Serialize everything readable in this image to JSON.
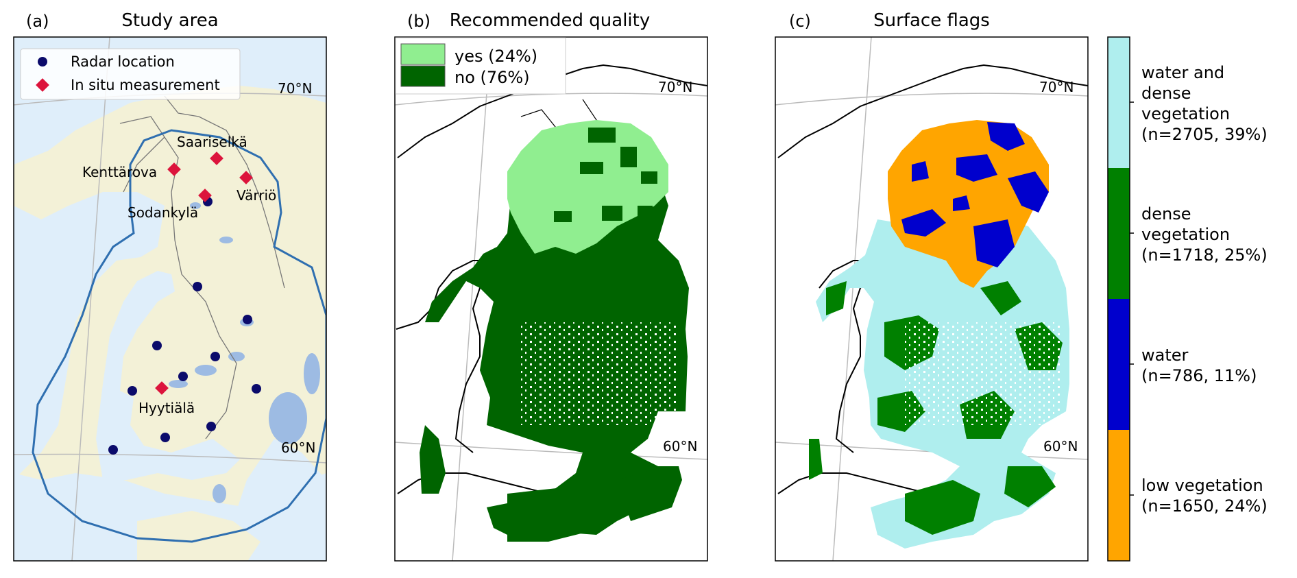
{
  "panels": [
    {
      "letter": "(a)",
      "title": "Study area"
    },
    {
      "letter": "(b)",
      "title": "Recommended quality"
    },
    {
      "letter": "(c)",
      "title": "Surface flags"
    }
  ],
  "panel_a": {
    "legend": {
      "radar": "Radar location",
      "insitu": "In situ measurement"
    },
    "lat70": "70°N",
    "lat60": "60°N",
    "sites": [
      {
        "name": "Saariselkä"
      },
      {
        "name": "Kenttärova"
      },
      {
        "name": "Värriö"
      },
      {
        "name": "Sodankylä"
      },
      {
        "name": "Hyytiälä"
      }
    ],
    "colors": {
      "radar": "#0b0b6b",
      "insitu": "#dc143c",
      "boundary": "#2f6fb0",
      "land": "#f3f1d7",
      "sea": "#dfeefa",
      "lake": "#9dbbe3"
    }
  },
  "panel_b": {
    "legend": {
      "yes": "yes (24%)",
      "no": "no (76%)"
    },
    "lat70": "70°N",
    "lat60": "60°N",
    "colors": {
      "yes": "#90ee90",
      "no": "#006400"
    }
  },
  "panel_c": {
    "lat70": "70°N",
    "lat60": "60°N"
  },
  "colorbar": {
    "categories": [
      {
        "label": "water and\ndense\nvegetation\n(n=2705, 39%)",
        "color": "#afeeee"
      },
      {
        "label": "dense\nvegetation\n(n=1718, 25%)",
        "color": "#008000"
      },
      {
        "label": "water\n(n=786, 11%)",
        "color": "#0000cd"
      },
      {
        "label": "low vegetation\n(n=1650, 24%)",
        "color": "#ffa500"
      }
    ]
  }
}
